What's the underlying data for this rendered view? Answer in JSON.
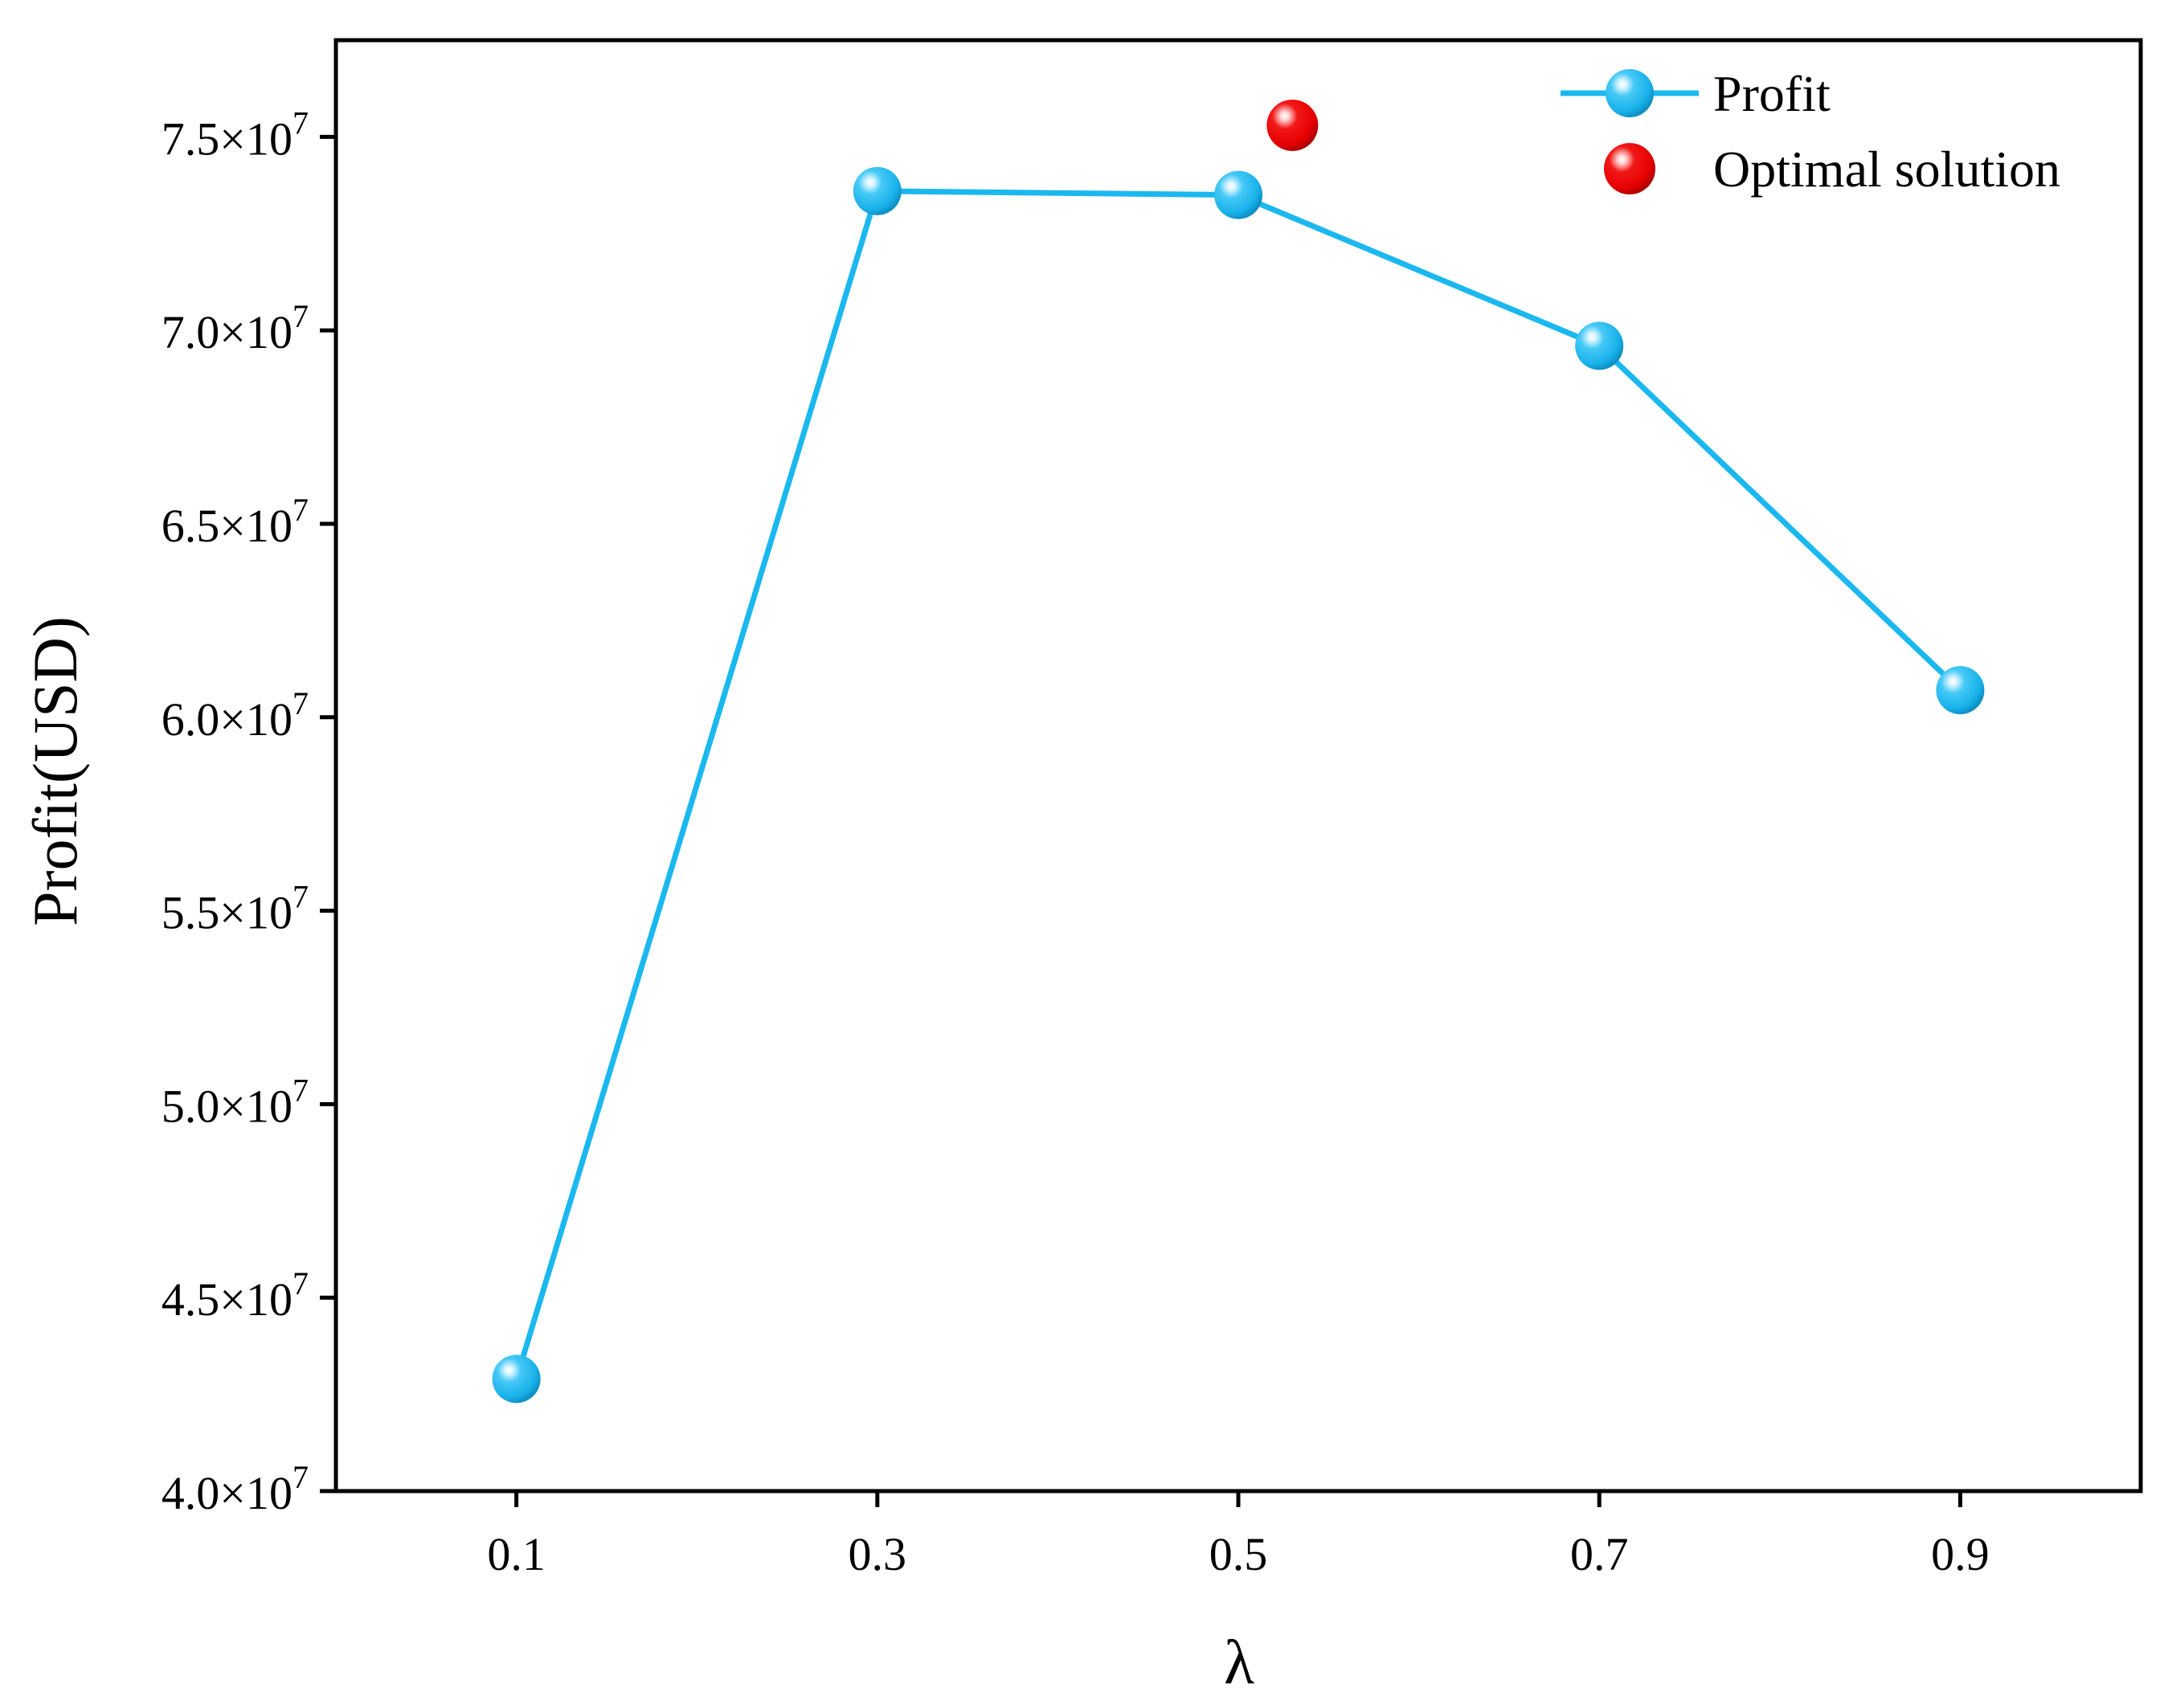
{
  "chart_data": {
    "type": "line",
    "xlabel": "λ",
    "ylabel": "Profit(USD)",
    "x_ticks": [
      "0.1",
      "0.3",
      "0.5",
      "0.7",
      "0.9"
    ],
    "y_ticks": [
      {
        "mantissa": "4.0",
        "times": "×10",
        "exp": "7",
        "value": 40000000
      },
      {
        "mantissa": "4.5",
        "times": "×10",
        "exp": "7",
        "value": 45000000
      },
      {
        "mantissa": "5.0",
        "times": "×10",
        "exp": "7",
        "value": 50000000
      },
      {
        "mantissa": "5.5",
        "times": "×10",
        "exp": "7",
        "value": 55000000
      },
      {
        "mantissa": "6.0",
        "times": "×10",
        "exp": "7",
        "value": 60000000
      },
      {
        "mantissa": "6.5",
        "times": "×10",
        "exp": "7",
        "value": 65000000
      },
      {
        "mantissa": "7.0",
        "times": "×10",
        "exp": "7",
        "value": 70000000
      },
      {
        "mantissa": "7.5",
        "times": "×10",
        "exp": "7",
        "value": 75000000
      }
    ],
    "xlim": [
      0.0,
      1.0
    ],
    "ylim": [
      40000000,
      77500000
    ],
    "grid": false,
    "legend_position": "top-right",
    "series": [
      {
        "name": "Profit",
        "color": "#1BB8F0",
        "x": [
          0.1,
          0.3,
          0.5,
          0.7,
          0.9
        ],
        "y": [
          42900000,
          73600000,
          73500000,
          69600000,
          60700000
        ]
      }
    ],
    "optimal": {
      "name": "Optimal solution",
      "color": "#E8000B",
      "x": 0.53,
      "y": 75300000
    }
  }
}
